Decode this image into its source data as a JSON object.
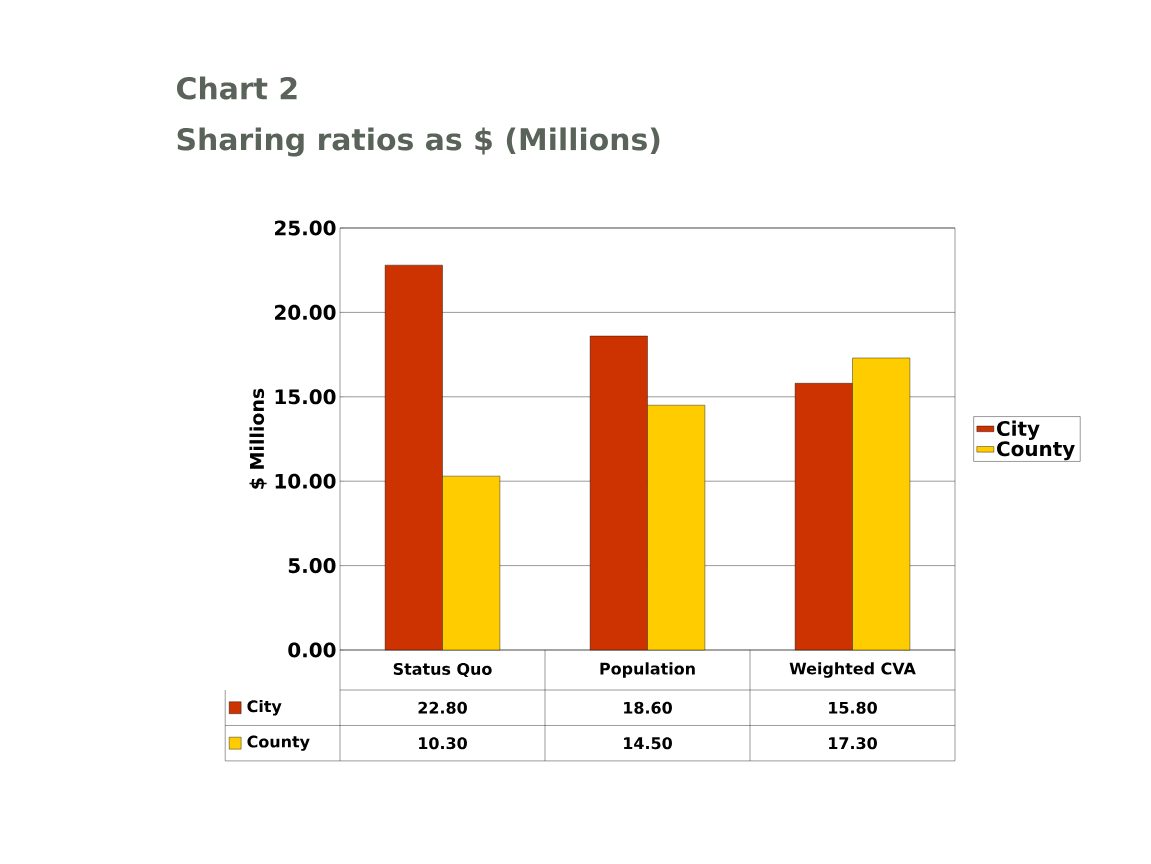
{
  "chart_data": {
    "type": "bar",
    "title": "Chart 2",
    "subtitle": "Sharing ratios as $ (Millions)",
    "ylabel": "$ Millions",
    "categories": [
      "Status Quo",
      "Population",
      "Weighted  CVA"
    ],
    "series": [
      {
        "name": "City",
        "color": "#cc3300",
        "values": [
          22.8,
          18.6,
          15.8
        ],
        "value_labels": [
          "22.80",
          "18.60",
          "15.80"
        ]
      },
      {
        "name": "County",
        "color": "#ffcc00",
        "values": [
          10.3,
          14.5,
          17.3
        ],
        "value_labels": [
          "10.30",
          "14.50",
          "17.30"
        ]
      }
    ],
    "ylim": [
      0,
      25
    ],
    "yticks": [
      {
        "value": 0,
        "label": "0.00"
      },
      {
        "value": 5,
        "label": "5.00"
      },
      {
        "value": 10,
        "label": "10.00"
      },
      {
        "value": 15,
        "label": "15.00"
      },
      {
        "value": 20,
        "label": "20.00"
      },
      {
        "value": 25,
        "label": "25.00"
      }
    ],
    "grid": "y",
    "legend": "right"
  }
}
